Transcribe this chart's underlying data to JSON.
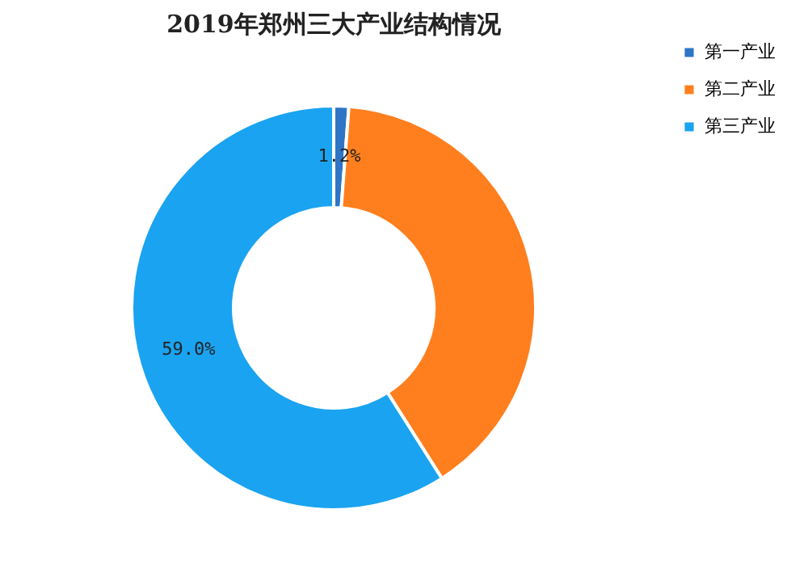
{
  "chart_data": {
    "type": "donut",
    "title": "2019年郑州三大产业结构情况",
    "categories": [
      "第一产业",
      "第二产业",
      "第三产业"
    ],
    "values": [
      1.2,
      39.8,
      59.0
    ],
    "colors": [
      "#2e75c6",
      "#ff7f1e",
      "#1aa3f0"
    ],
    "value_labels": [
      "1.2%",
      null,
      "59.0%"
    ],
    "legend": "right"
  }
}
